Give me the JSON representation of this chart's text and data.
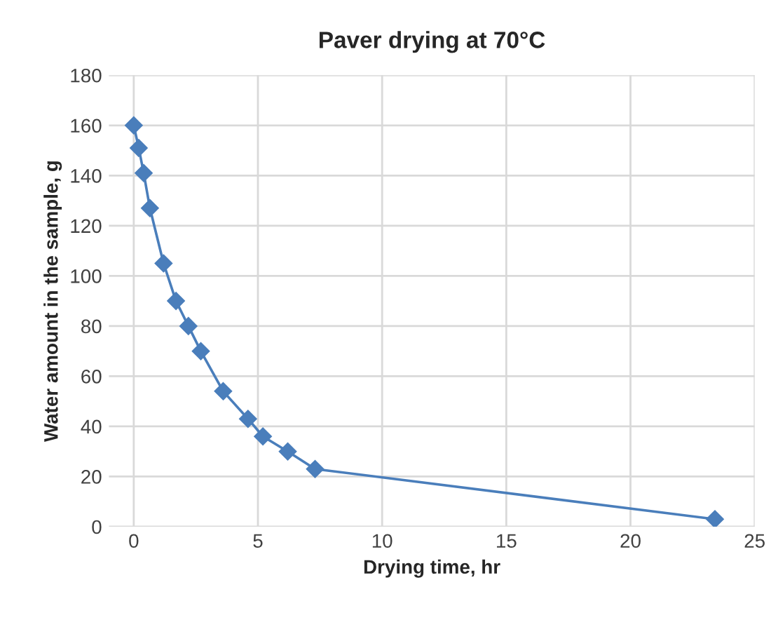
{
  "chart_data": {
    "type": "line",
    "title": "Paver drying at 70°C",
    "xlabel": "Drying time, hr",
    "ylabel": "Water amount in the sample, g",
    "x": [
      0,
      0.2,
      0.4,
      0.65,
      1.2,
      1.7,
      2.2,
      2.7,
      3.6,
      4.6,
      5.2,
      6.2,
      7.3,
      23.4
    ],
    "series": [
      {
        "color": "#4a7ebb",
        "values": [
          160,
          151,
          141,
          127,
          105,
          90,
          80,
          70,
          54,
          43,
          36,
          30,
          23,
          3
        ]
      }
    ],
    "xlim": [
      -1,
      25
    ],
    "xticks": [
      0,
      5,
      10,
      15,
      20,
      25
    ],
    "ylim": [
      0,
      180
    ],
    "yticks": [
      0,
      20,
      40,
      60,
      80,
      100,
      120,
      140,
      160,
      180
    ],
    "grid": true,
    "marker": "diamond",
    "line_style": "solid",
    "legend": false
  }
}
